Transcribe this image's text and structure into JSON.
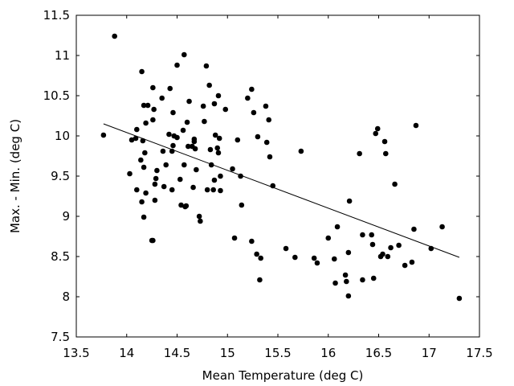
{
  "chart_data": {
    "type": "scatter",
    "title": "",
    "xlabel": "Mean Temperature (deg C)",
    "ylabel": "Max. - Min. (deg C)",
    "xlim": [
      13.5,
      17.5
    ],
    "ylim": [
      7.5,
      11.5
    ],
    "x_ticks": [
      "13.5",
      "14",
      "14.5",
      "15",
      "15.5",
      "16",
      "16.5",
      "17",
      "17.5"
    ],
    "y_ticks": [
      "7.5",
      "8",
      "8.5",
      "9",
      "9.5",
      "10",
      "10.5",
      "11",
      "11.5"
    ],
    "grid": false,
    "legend": "none",
    "point_color": "#000000",
    "series": [
      {
        "points": [
          [
            13.77,
            10.01
          ],
          [
            13.88,
            11.24
          ],
          [
            14.03,
            9.53
          ],
          [
            14.05,
            9.95
          ],
          [
            14.09,
            9.97
          ],
          [
            14.1,
            10.08
          ],
          [
            14.1,
            9.33
          ],
          [
            14.14,
            9.7
          ],
          [
            14.15,
            10.8
          ],
          [
            14.15,
            9.18
          ],
          [
            14.16,
            9.94
          ],
          [
            14.17,
            8.99
          ],
          [
            14.17,
            10.38
          ],
          [
            14.17,
            9.61
          ],
          [
            14.18,
            9.79
          ],
          [
            14.19,
            10.16
          ],
          [
            14.19,
            9.29
          ],
          [
            14.21,
            10.38
          ],
          [
            14.25,
            8.7
          ],
          [
            14.26,
            10.6
          ],
          [
            14.26,
            10.2
          ],
          [
            14.26,
            8.7
          ],
          [
            14.27,
            10.33
          ],
          [
            14.28,
            9.2
          ],
          [
            14.28,
            9.4
          ],
          [
            14.29,
            9.47
          ],
          [
            14.3,
            9.57
          ],
          [
            14.35,
            10.47
          ],
          [
            14.36,
            9.81
          ],
          [
            14.37,
            9.37
          ],
          [
            14.39,
            9.64
          ],
          [
            14.42,
            10.02
          ],
          [
            14.43,
            10.59
          ],
          [
            14.45,
            9.81
          ],
          [
            14.45,
            9.33
          ],
          [
            14.46,
            9.88
          ],
          [
            14.46,
            10.29
          ],
          [
            14.47,
            10.0
          ],
          [
            14.5,
            10.88
          ],
          [
            14.5,
            9.98
          ],
          [
            14.53,
            9.46
          ],
          [
            14.54,
            9.14
          ],
          [
            14.56,
            10.07
          ],
          [
            14.57,
            11.01
          ],
          [
            14.57,
            9.64
          ],
          [
            14.58,
            9.12
          ],
          [
            14.59,
            9.13
          ],
          [
            14.6,
            10.17
          ],
          [
            14.61,
            9.87
          ],
          [
            14.62,
            10.43
          ],
          [
            14.65,
            9.87
          ],
          [
            14.66,
            9.36
          ],
          [
            14.67,
            9.96
          ],
          [
            14.67,
            9.93
          ],
          [
            14.68,
            9.84
          ],
          [
            14.69,
            9.58
          ],
          [
            14.72,
            9.0
          ],
          [
            14.73,
            8.94
          ],
          [
            14.76,
            10.37
          ],
          [
            14.77,
            10.18
          ],
          [
            14.79,
            10.87
          ],
          [
            14.8,
            9.33
          ],
          [
            14.82,
            10.63
          ],
          [
            14.83,
            9.83
          ],
          [
            14.84,
            9.64
          ],
          [
            14.86,
            9.33
          ],
          [
            14.87,
            10.4
          ],
          [
            14.87,
            9.45
          ],
          [
            14.88,
            10.01
          ],
          [
            14.9,
            9.85
          ],
          [
            14.91,
            10.5
          ],
          [
            14.91,
            9.79
          ],
          [
            14.92,
            9.97
          ],
          [
            14.93,
            9.32
          ],
          [
            14.93,
            9.5
          ],
          [
            14.98,
            10.33
          ],
          [
            15.05,
            9.59
          ],
          [
            15.07,
            8.73
          ],
          [
            15.1,
            9.95
          ],
          [
            15.13,
            9.5
          ],
          [
            15.14,
            9.14
          ],
          [
            15.2,
            10.47
          ],
          [
            15.24,
            10.58
          ],
          [
            15.24,
            8.69
          ],
          [
            15.26,
            10.29
          ],
          [
            15.29,
            8.53
          ],
          [
            15.3,
            9.99
          ],
          [
            15.32,
            8.21
          ],
          [
            15.33,
            8.48
          ],
          [
            15.38,
            10.37
          ],
          [
            15.39,
            9.92
          ],
          [
            15.41,
            10.2
          ],
          [
            15.42,
            9.74
          ],
          [
            15.45,
            9.38
          ],
          [
            15.58,
            8.6
          ],
          [
            15.67,
            8.49
          ],
          [
            15.73,
            9.81
          ],
          [
            15.86,
            8.48
          ],
          [
            15.89,
            8.42
          ],
          [
            16.0,
            8.73
          ],
          [
            16.06,
            8.47
          ],
          [
            16.07,
            8.17
          ],
          [
            16.09,
            8.87
          ],
          [
            16.17,
            8.27
          ],
          [
            16.18,
            8.19
          ],
          [
            16.2,
            8.01
          ],
          [
            16.2,
            8.55
          ],
          [
            16.21,
            9.19
          ],
          [
            16.31,
            9.78
          ],
          [
            16.34,
            8.77
          ],
          [
            16.34,
            8.21
          ],
          [
            16.43,
            8.77
          ],
          [
            16.44,
            8.65
          ],
          [
            16.45,
            8.23
          ],
          [
            16.47,
            10.03
          ],
          [
            16.49,
            10.09
          ],
          [
            16.52,
            8.5
          ],
          [
            16.54,
            8.53
          ],
          [
            16.56,
            9.93
          ],
          [
            16.57,
            9.78
          ],
          [
            16.59,
            8.5
          ],
          [
            16.62,
            8.61
          ],
          [
            16.66,
            9.4
          ],
          [
            16.7,
            8.64
          ],
          [
            16.76,
            8.39
          ],
          [
            16.83,
            8.43
          ],
          [
            16.85,
            8.84
          ],
          [
            16.87,
            10.13
          ],
          [
            17.02,
            8.6
          ],
          [
            17.13,
            8.87
          ],
          [
            17.3,
            7.98
          ]
        ]
      }
    ],
    "trend_line": {
      "x": [
        13.77,
        17.3
      ],
      "y": [
        10.15,
        8.49
      ],
      "color": "#000000"
    }
  }
}
